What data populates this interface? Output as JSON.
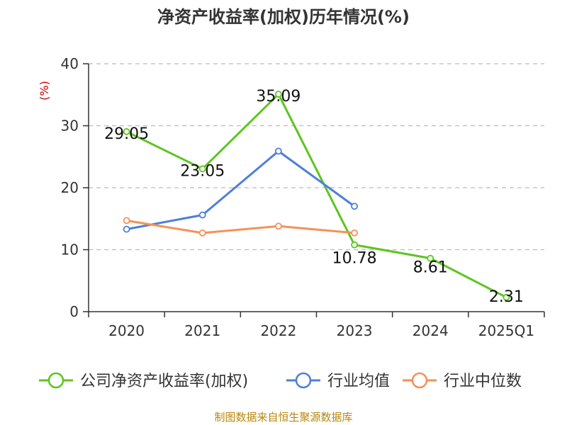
{
  "chart_data": {
    "type": "line",
    "title": "净资产收益率(加权)历年情况(%)",
    "ylabel": "(%)",
    "xlabel": "",
    "categories": [
      "2020",
      "2021",
      "2022",
      "2023",
      "2024",
      "2025Q1"
    ],
    "ylim": [
      0,
      40
    ],
    "yticks": [
      0,
      10,
      20,
      30,
      40
    ],
    "grid": true,
    "legend_position": "bottom",
    "series": [
      {
        "name": "公司净资产收益率(加权)",
        "color": "#5cc520",
        "values": [
          29.05,
          23.05,
          35.09,
          10.78,
          8.61,
          2.31
        ],
        "labels": [
          "29.05",
          "23.05",
          "35.09",
          "10.78",
          "8.61",
          "2.31"
        ]
      },
      {
        "name": "行业均值",
        "color": "#4e7fd9",
        "values": [
          13.3,
          15.6,
          25.9,
          17.0,
          null,
          null
        ]
      },
      {
        "name": "行业中位数",
        "color": "#f5915a",
        "values": [
          14.7,
          12.7,
          13.8,
          12.7,
          null,
          null
        ]
      }
    ]
  },
  "source_text": "制图数据来自恒生聚源数据库"
}
